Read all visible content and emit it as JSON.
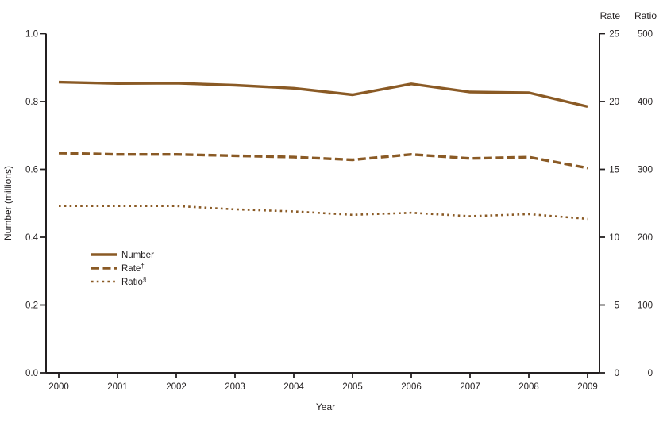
{
  "figure": {
    "x_axis_label": "Year",
    "y_left_axis_label": "Number (millions)",
    "right_axis_headers": [
      "Rate",
      "Ratio"
    ]
  },
  "colors": {
    "line_brown": "#8a5a25",
    "axis_black": "#231f20",
    "background": "#ffffff"
  },
  "chart_data": {
    "type": "line",
    "title": "",
    "xlabel": "Year",
    "x": [
      2000,
      2001,
      2002,
      2003,
      2004,
      2005,
      2006,
      2007,
      2008,
      2009
    ],
    "left_axis": {
      "label": "Number (millions)",
      "min": 0.0,
      "max": 1.0,
      "tick_labels": [
        "0.0",
        "0.2",
        "0.4",
        "0.6",
        "0.8",
        "1.0"
      ]
    },
    "right_axes": [
      {
        "key": "rate",
        "header": "Rate",
        "min": 0,
        "max": 25,
        "tick_labels": [
          "0",
          "5",
          "10",
          "15",
          "20",
          "25"
        ]
      },
      {
        "key": "ratio",
        "header": "Ratio",
        "min": 0,
        "max": 500,
        "tick_labels": [
          "0",
          "100",
          "200",
          "300",
          "400",
          "500"
        ]
      }
    ],
    "grid": false,
    "legend_position": "inside-left-middle",
    "series": [
      {
        "name": "Number",
        "legend_label": "Number",
        "superscript": "",
        "axis": "left",
        "style": "solid",
        "values": [
          0.857,
          0.853,
          0.854,
          0.848,
          0.839,
          0.82,
          0.852,
          0.828,
          0.826,
          0.785
        ]
      },
      {
        "name": "Rate",
        "legend_label": "Rate",
        "superscript": "†",
        "axis": "rate",
        "style": "dashed",
        "values": [
          16.2,
          16.1,
          16.1,
          16.0,
          15.9,
          15.7,
          16.1,
          15.8,
          15.9,
          15.1
        ]
      },
      {
        "name": "Ratio",
        "legend_label": "Ratio",
        "superscript": "§",
        "axis": "ratio",
        "style": "dotted",
        "values": [
          246,
          246,
          246,
          241,
          238,
          233,
          236,
          231,
          234,
          227
        ]
      }
    ]
  }
}
